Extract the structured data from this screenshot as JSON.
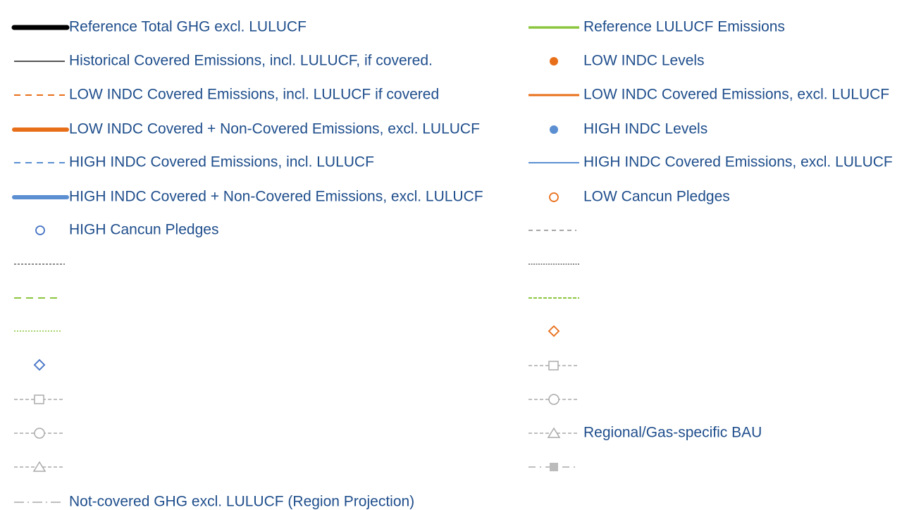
{
  "legend": {
    "left": [
      {
        "label": "Reference Total GHG excl. LULUCF"
      },
      {
        "label": "Historical Covered Emissions, incl. LULUCF, if covered."
      },
      {
        "label": "LOW INDC Covered Emissions, incl. LULUCF if covered"
      },
      {
        "label": "LOW INDC Covered + Non-Covered Emissions, excl. LULUCF"
      },
      {
        "label": "HIGH INDC Covered Emissions, incl. LULUCF"
      },
      {
        "label": "HIGH INDC Covered + Non-Covered Emissions, excl. LULUCF"
      },
      {
        "label": "HIGH Cancun Pledges"
      },
      {
        "label": "Not-covered GHG excl. LULUCF (Region Projection)"
      }
    ],
    "right": [
      {
        "label": "Reference LULUCF Emissions"
      },
      {
        "label": "LOW INDC Levels"
      },
      {
        "label": "LOW INDC Covered Emissions, excl. LULUCF"
      },
      {
        "label": "HIGH INDC Levels"
      },
      {
        "label": "HIGH INDC Covered Emissions, excl. LULUCF"
      },
      {
        "label": "LOW Cancun Pledges"
      },
      {
        "label": "Regional/Gas-specific BAU"
      }
    ]
  }
}
